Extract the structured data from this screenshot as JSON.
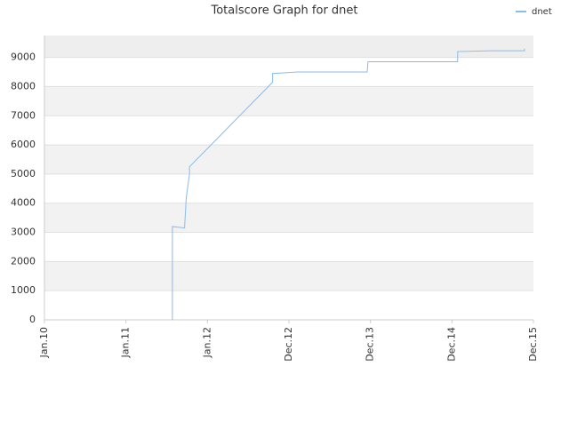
{
  "chart_data": {
    "type": "line",
    "title": "Totalscore Graph for dnet",
    "series": [
      {
        "name": "dnet",
        "color": "#88bbee",
        "x": [
          1.57,
          1.57,
          1.57,
          1.72,
          1.72,
          1.74,
          1.78,
          1.78,
          2.8,
          2.8,
          2.82,
          3.11,
          3.96,
          3.96,
          3.97,
          5.07,
          5.07,
          5.49,
          5.89,
          5.89
        ],
        "values": [
          0,
          2400,
          3200,
          3150,
          3200,
          4200,
          5000,
          5250,
          8150,
          8450,
          8450,
          8500,
          8500,
          8520,
          8850,
          8850,
          9200,
          9230,
          9230,
          9300
        ]
      }
    ],
    "xlim": [
      0,
      6
    ],
    "xticks": [
      {
        "value": 0,
        "label": "Jan.10"
      },
      {
        "value": 1,
        "label": "Jan.11"
      },
      {
        "value": 2,
        "label": "Jan.12"
      },
      {
        "value": 3,
        "label": "Dec.12"
      },
      {
        "value": 4,
        "label": "Dec.13"
      },
      {
        "value": 5,
        "label": "Dec.14"
      },
      {
        "value": 6,
        "label": "Dec.15"
      }
    ],
    "ylim": [
      0,
      9750
    ],
    "yticks": [
      0,
      1000,
      2000,
      3000,
      4000,
      5000,
      6000,
      7000,
      8000,
      9000
    ],
    "grid": true,
    "legend": "top-right"
  }
}
